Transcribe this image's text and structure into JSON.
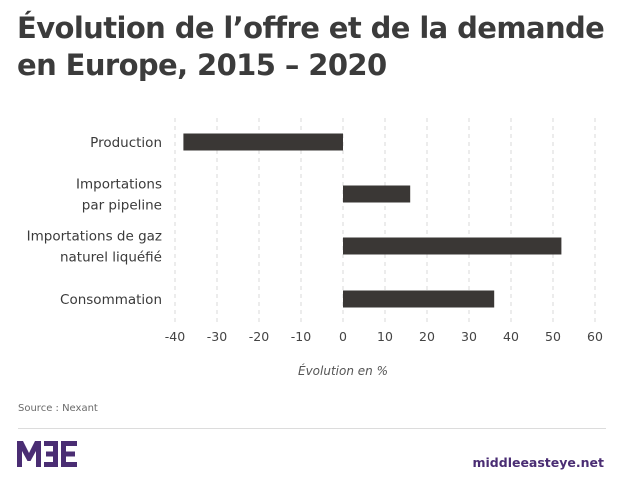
{
  "title_lines": [
    "Évolution de l’offre et de la demande",
    "en Europe,  2015 – 2020"
  ],
  "chart_data": {
    "type": "bar",
    "orientation": "horizontal",
    "title": "Évolution de l’offre et de la demande en Europe,  2015 – 2020",
    "categories": [
      [
        "Production"
      ],
      [
        "Importations",
        "par pipeline"
      ],
      [
        "Importations de gaz",
        "naturel liquéfié"
      ],
      [
        "Consommation"
      ]
    ],
    "category_names": [
      "Production",
      "Importations par pipeline",
      "Importations de gaz naturel liquéfié",
      "Consommation"
    ],
    "values": [
      -38,
      16,
      52,
      36
    ],
    "xlabel": "Évolution en %",
    "ylabel": "",
    "xlim": [
      -40,
      60
    ],
    "xticks": [
      -40,
      -30,
      -20,
      -10,
      0,
      10,
      20,
      30,
      40,
      50,
      60
    ],
    "grid": "vertical dashed",
    "legend": "none",
    "bar_color": "#3a3735",
    "grid_color": "#d8d8d8"
  },
  "source": "Source : Nexant",
  "footer": {
    "logo_text": "MEE",
    "site": "middleeasteye.net",
    "brand_color": "#4a2d73"
  }
}
